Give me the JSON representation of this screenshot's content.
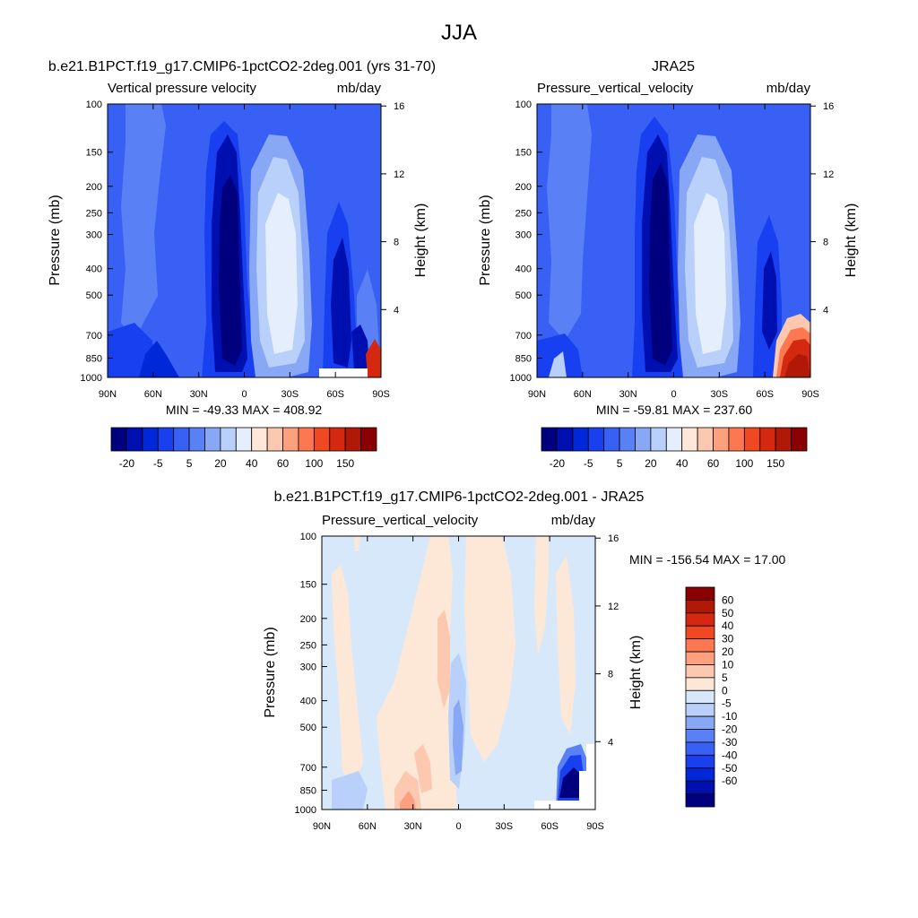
{
  "figure_title": "JJA",
  "colors": {
    "abs_scale": [
      "#00007f",
      "#0010b0",
      "#0028d8",
      "#1840f0",
      "#3860f5",
      "#5a80f5",
      "#88a8f5",
      "#b8d0fa",
      "#e4eefd",
      "#ffe8d8",
      "#fdc8b0",
      "#fca080",
      "#fb7850",
      "#f04820",
      "#d42810",
      "#b01808",
      "#8a0000"
    ],
    "diff_scale": [
      "#00007f",
      "#0010b0",
      "#0028d8",
      "#1840f0",
      "#3860f5",
      "#5a80f5",
      "#88a8f5",
      "#b8d0fa",
      "#d8e8fb",
      "#fde8d8",
      "#fdc8b0",
      "#fca080",
      "#fb7850",
      "#f04820",
      "#d42810",
      "#b01808",
      "#8a0000"
    ]
  },
  "chart_data": [
    {
      "type": "heatmap",
      "title": "b.e21.B1PCT.f19_g17.CMIP6-1pctCO2-2deg.001 (yrs 31-70)",
      "variable": "Vertical pressure velocity",
      "units": "mb/day",
      "ylabel": "Pressure (mb)",
      "ylabel_right": "Height (km)",
      "x_ticks": [
        "90N",
        "60N",
        "30N",
        "0",
        "30S",
        "60S",
        "90S"
      ],
      "y_ticks": [
        "100",
        "150",
        "200",
        "250",
        "300",
        "400",
        "500",
        "700",
        "850",
        "1000"
      ],
      "y_ticks_right": [
        "16",
        "12",
        "8",
        "4"
      ],
      "stats": "MIN = -49.33  MAX = 408.92",
      "colorbar_labels": [
        "-20",
        "-5",
        "5",
        "20",
        "40",
        "60",
        "100",
        "150"
      ]
    },
    {
      "type": "heatmap",
      "title": "JRA25",
      "variable": "Pressure_vertical_velocity",
      "units": "mb/day",
      "ylabel": "Pressure (mb)",
      "ylabel_right": "Height (km)",
      "x_ticks": [
        "90N",
        "60N",
        "30N",
        "0",
        "30S",
        "60S",
        "90S"
      ],
      "y_ticks": [
        "100",
        "150",
        "200",
        "250",
        "300",
        "400",
        "500",
        "700",
        "850",
        "1000"
      ],
      "y_ticks_right": [
        "16",
        "12",
        "8",
        "4"
      ],
      "stats": "MIN = -59.81  MAX = 237.60",
      "colorbar_labels": [
        "-20",
        "-5",
        "5",
        "20",
        "40",
        "60",
        "100",
        "150"
      ]
    },
    {
      "type": "heatmap",
      "title": "b.e21.B1PCT.f19_g17.CMIP6-1pctCO2-2deg.001 - JRA25",
      "variable": "Pressure_vertical_velocity",
      "units": "mb/day",
      "ylabel": "Pressure (mb)",
      "ylabel_right": "Height (km)",
      "x_ticks": [
        "90N",
        "60N",
        "30N",
        "0",
        "30S",
        "60S",
        "90S"
      ],
      "y_ticks": [
        "100",
        "150",
        "200",
        "250",
        "300",
        "400",
        "500",
        "700",
        "850",
        "1000"
      ],
      "y_ticks_right": [
        "16",
        "12",
        "8",
        "4"
      ],
      "stats": "MIN = -156.54  MAX =  17.00",
      "colorbar_labels": [
        "60",
        "50",
        "40",
        "30",
        "20",
        "10",
        "5",
        "0",
        "-5",
        "-10",
        "-20",
        "-30",
        "-40",
        "-50",
        "-60"
      ]
    }
  ]
}
